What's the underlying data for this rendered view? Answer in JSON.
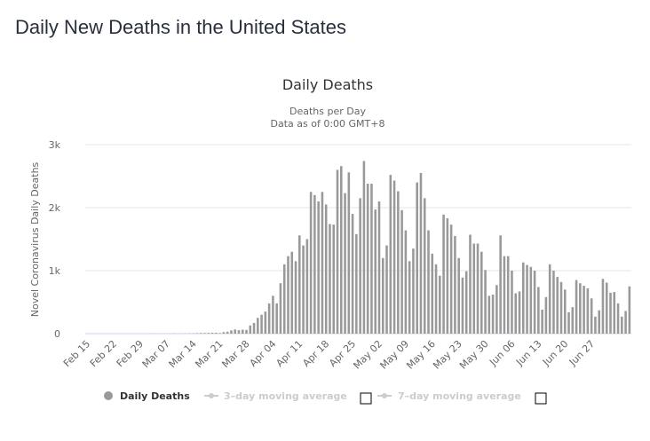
{
  "page": {
    "title": "Daily New Deaths in the United States"
  },
  "chart_data": {
    "type": "bar",
    "title": "Daily Deaths",
    "subtitle": [
      "Deaths per Day",
      "Data as of 0:00 GMT+8"
    ],
    "xlabel": "",
    "ylabel": "Novel Coronavirus Daily Deaths",
    "ylim": [
      0,
      3000
    ],
    "yticks": [
      0,
      1000,
      2000,
      3000
    ],
    "ytick_labels": [
      "0",
      "1k",
      "2k",
      "3k"
    ],
    "grid": true,
    "start_date": "Feb 15",
    "xtick_labels": [
      "Feb 15",
      "Feb 22",
      "Feb 29",
      "Mar 07",
      "Mar 14",
      "Mar 21",
      "Mar 28",
      "Apr 04",
      "Apr 11",
      "Apr 18",
      "Apr 25",
      "May 02",
      "May 09",
      "May 16",
      "May 23",
      "May 30",
      "Jun 06",
      "Jun 13",
      "Jun 20",
      "Jun 27"
    ],
    "bar_color": "#999999",
    "series": [
      {
        "name": "Daily Deaths",
        "values": [
          0,
          0,
          0,
          0,
          0,
          0,
          0,
          0,
          0,
          0,
          0,
          0,
          0,
          0,
          1,
          0,
          1,
          1,
          2,
          1,
          1,
          1,
          2,
          4,
          1,
          3,
          2,
          4,
          5,
          8,
          10,
          10,
          12,
          14,
          14,
          10,
          24,
          31,
          52,
          67,
          55,
          63,
          58,
          130,
          170,
          250,
          300,
          350,
          480,
          600,
          480,
          800,
          1100,
          1230,
          1300,
          1150,
          1560,
          1400,
          1500,
          2250,
          2200,
          2100,
          2250,
          2050,
          1740,
          1730,
          2600,
          2660,
          2230,
          2560,
          1900,
          1580,
          2150,
          2740,
          2380,
          2380,
          1970,
          2100,
          1200,
          1400,
          2520,
          2430,
          2260,
          1960,
          1640,
          1150,
          1350,
          2400,
          2550,
          2150,
          1640,
          1270,
          1100,
          920,
          1890,
          1830,
          1730,
          1550,
          1200,
          890,
          990,
          1570,
          1430,
          1430,
          1300,
          1010,
          600,
          620,
          770,
          1560,
          1230,
          1230,
          1000,
          640,
          670,
          1130,
          1090,
          1060,
          1000,
          740,
          380,
          580,
          1100,
          1000,
          900,
          820,
          700,
          340,
          420,
          850,
          800,
          760,
          720,
          560,
          270,
          370,
          870,
          810,
          650,
          660,
          480,
          270,
          360,
          750
        ]
      },
      {
        "name": "3-day moving average",
        "visible": false
      },
      {
        "name": "7-day moving average",
        "visible": false
      }
    ],
    "legend": {
      "position": "bottom",
      "items": [
        {
          "label": "Daily Deaths",
          "active": true,
          "color": "#999999"
        },
        {
          "label": "3–day moving average",
          "active": false,
          "color": "#cccccc",
          "checkbox": false
        },
        {
          "label": "7–day moving average",
          "active": false,
          "color": "#cccccc",
          "checkbox": false
        }
      ]
    }
  }
}
